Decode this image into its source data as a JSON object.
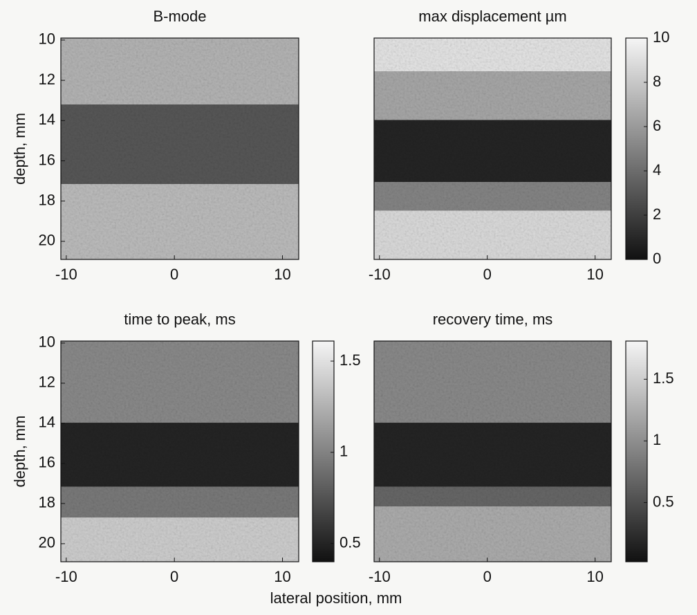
{
  "chart_data": [
    {
      "type": "heatmap",
      "title": "B-mode",
      "ylabel": "depth, mm",
      "xlim": [
        -10.5,
        11.5
      ],
      "xticks": [
        -10,
        0,
        10
      ],
      "ylim": [
        9.9,
        20.9
      ],
      "yticks": [
        10,
        12,
        14,
        16,
        18,
        20
      ],
      "y_reversed": true,
      "colormap": "gray"
    },
    {
      "type": "heatmap",
      "title": "max displacement µm",
      "xlim": [
        -10.5,
        11.5
      ],
      "xticks": [
        -10,
        0,
        10
      ],
      "ylim": [
        9.9,
        20.9
      ],
      "y_reversed": true,
      "colormap": "gray",
      "clim": [
        0,
        10
      ],
      "cticks": [
        0,
        2,
        4,
        6,
        8,
        10
      ]
    },
    {
      "type": "heatmap",
      "title": "time to peak, ms",
      "ylabel": "depth, mm",
      "xlabel": "lateral position, mm",
      "xlim": [
        -10.5,
        11.5
      ],
      "xticks": [
        -10,
        0,
        10
      ],
      "ylim": [
        9.9,
        20.9
      ],
      "yticks": [
        10,
        12,
        14,
        16,
        18,
        20
      ],
      "y_reversed": true,
      "colormap": "gray",
      "clim": [
        0.4,
        1.61
      ],
      "cticks": [
        0.5,
        1,
        1.5
      ]
    },
    {
      "type": "heatmap",
      "title": "recovery time, ms",
      "xlim": [
        -10.5,
        11.5
      ],
      "xticks": [
        -10,
        0,
        10
      ],
      "ylim": [
        9.9,
        20.9
      ],
      "y_reversed": true,
      "colormap": "gray",
      "clim": [
        0.02,
        1.81
      ],
      "cticks": [
        0.5,
        1,
        1.5
      ]
    }
  ]
}
